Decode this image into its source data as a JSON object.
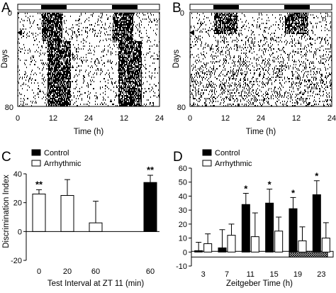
{
  "panels": {
    "A": {
      "letter": "A",
      "ylabel": "Days",
      "xlabel": "Time (h)",
      "yticks": [
        "0",
        "80"
      ],
      "xticks": [
        "0",
        "12",
        "24",
        "12",
        "24"
      ],
      "description_hidden": "",
      "light_bar": {
        "dark_phases_h": [
          [
            8,
            16
          ],
          [
            32,
            40
          ]
        ]
      }
    },
    "B": {
      "letter": "B",
      "ylabel": "Days",
      "xlabel": "Time (h)",
      "yticks": [
        "0",
        "80"
      ],
      "xticks": [
        "0",
        "12",
        "24",
        "12",
        "24"
      ],
      "light_bar": {
        "dark_phases_h": [
          [
            8,
            16
          ],
          [
            32,
            40
          ]
        ]
      }
    }
  },
  "chart_data": [
    {
      "panel": "C",
      "letter": "C",
      "type": "bar",
      "xlabel": "Test Interval at ZT 11 (min)",
      "ylabel": "Discrimination Index",
      "ylim": [
        -20,
        40
      ],
      "yticks": [
        -20,
        0,
        20,
        40
      ],
      "legend": [
        {
          "name": "Control",
          "fill": "#000000"
        },
        {
          "name": "Arrhythmic",
          "fill": "#ffffff"
        }
      ],
      "bars": [
        {
          "category": "0",
          "series": "Arrhythmic",
          "value": 26,
          "error": 3,
          "sig": "**"
        },
        {
          "category": "20",
          "series": "Arrhythmic",
          "value": 25,
          "error": 11,
          "sig": ""
        },
        {
          "category": "60",
          "series": "Arrhythmic",
          "value": 6,
          "error": 15,
          "sig": ""
        },
        {
          "category": "60",
          "series": "Control",
          "value": 34,
          "error": 5,
          "sig": "**"
        }
      ]
    },
    {
      "panel": "D",
      "letter": "D",
      "type": "bar",
      "xlabel": "Zeitgeber Time (h)",
      "ylabel": "",
      "ylim": [
        -10,
        60
      ],
      "yticks": [
        -10,
        0,
        10,
        20,
        30,
        40,
        50,
        60
      ],
      "legend": [
        {
          "name": "Control",
          "fill": "#000000"
        },
        {
          "name": "Arrhythmic",
          "fill": "#ffffff"
        }
      ],
      "categories": [
        "3",
        "7",
        "11",
        "15",
        "19",
        "23"
      ],
      "series": [
        {
          "name": "Control",
          "values": [
            1,
            3,
            34,
            35,
            31,
            41
          ],
          "errors": [
            6,
            13,
            8,
            10,
            8,
            10
          ]
        },
        {
          "name": "Arrhythmic",
          "values": [
            6,
            12,
            11,
            15,
            8,
            10
          ],
          "errors": [
            7,
            8,
            17,
            10,
            10,
            11
          ]
        }
      ],
      "significance": [
        "",
        "",
        "*",
        "*",
        "*",
        "*"
      ],
      "light_bar": {
        "dark_phase_h": [
          18,
          24
        ]
      }
    }
  ]
}
